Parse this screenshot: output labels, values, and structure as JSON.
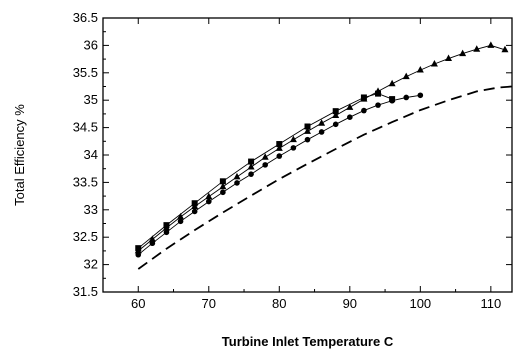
{
  "chart_data": {
    "type": "line",
    "title": "",
    "xlabel": "Turbine Inlet Temperature C",
    "ylabel": "Total Efficiency %",
    "xlim": [
      55,
      113
    ],
    "ylim": [
      31.5,
      36.5
    ],
    "xticks": [
      60,
      70,
      80,
      90,
      100,
      110
    ],
    "yticks": [
      31.5,
      32,
      32.5,
      33,
      33.5,
      34,
      34.5,
      35,
      35.5,
      36,
      36.5
    ],
    "grid": false,
    "legend": "none",
    "series": [
      {
        "marker": "square",
        "x": [
          60,
          64,
          68,
          72,
          76,
          80,
          84,
          88,
          92,
          94,
          96
        ],
        "y": [
          32.3,
          32.72,
          33.12,
          33.52,
          33.88,
          34.2,
          34.52,
          34.8,
          35.05,
          35.12,
          35.02
        ]
      },
      {
        "marker": "triangle",
        "x": [
          60,
          62,
          64,
          66,
          68,
          70,
          72,
          74,
          76,
          78,
          80,
          82,
          84,
          86,
          88,
          90,
          92,
          94,
          96,
          98,
          100,
          102,
          104,
          106,
          108,
          110,
          112
        ],
        "y": [
          32.25,
          32.46,
          32.67,
          32.87,
          33.06,
          33.24,
          33.42,
          33.6,
          33.78,
          33.96,
          34.12,
          34.28,
          34.43,
          34.58,
          34.72,
          34.87,
          35.02,
          35.16,
          35.3,
          35.43,
          35.55,
          35.66,
          35.76,
          35.85,
          35.93,
          36.0,
          35.92
        ]
      },
      {
        "marker": "circle",
        "x": [
          60,
          62,
          64,
          66,
          68,
          70,
          72,
          74,
          76,
          78,
          80,
          82,
          84,
          86,
          88,
          90,
          92,
          94,
          96,
          98,
          100
        ],
        "y": [
          32.18,
          32.39,
          32.59,
          32.79,
          32.97,
          33.15,
          33.32,
          33.49,
          33.65,
          33.82,
          33.98,
          34.13,
          34.28,
          34.42,
          34.56,
          34.69,
          34.81,
          34.91,
          34.99,
          35.05,
          35.09
        ]
      },
      {
        "marker": "none",
        "dash": true,
        "x": [
          60,
          64,
          68,
          72,
          76,
          80,
          84,
          88,
          92,
          96,
          100,
          104,
          108,
          111,
          113
        ],
        "y": [
          31.92,
          32.29,
          32.63,
          32.95,
          33.26,
          33.56,
          33.84,
          34.11,
          34.37,
          34.6,
          34.82,
          35.0,
          35.16,
          35.23,
          35.25
        ]
      }
    ]
  }
}
